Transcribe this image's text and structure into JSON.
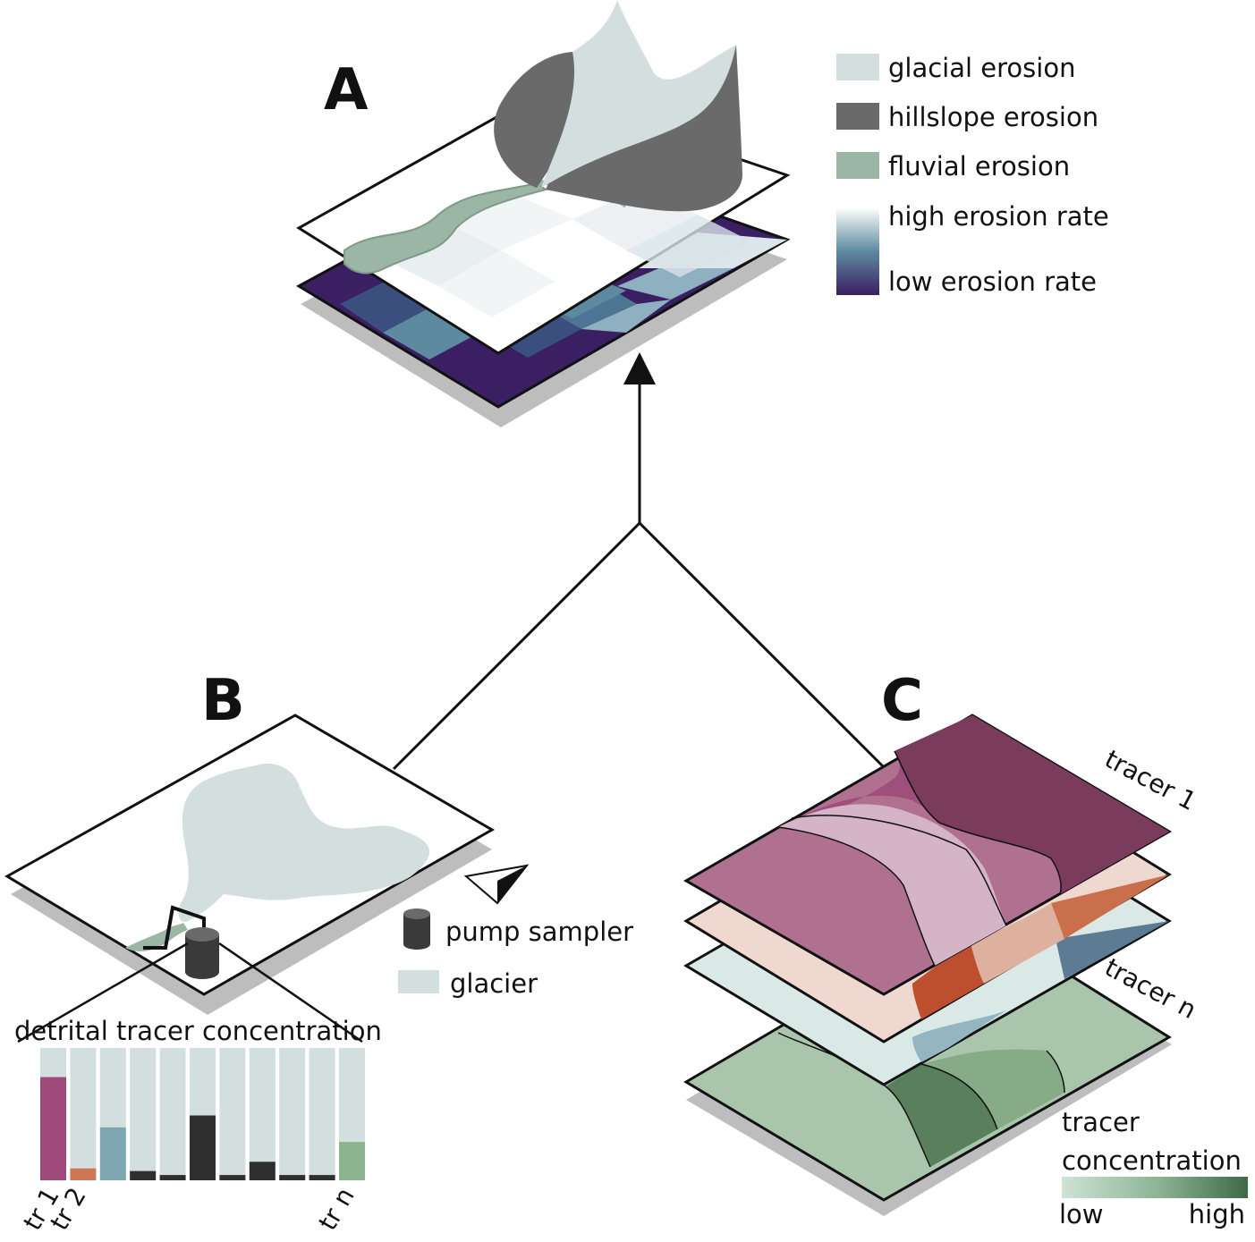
{
  "panels": {
    "a": {
      "letter": "A"
    },
    "b": {
      "letter": "B"
    },
    "c": {
      "letter": "C"
    }
  },
  "legend_a": {
    "glacial": {
      "label": "glacial erosion",
      "color": "#d3dfdf"
    },
    "hillslope": {
      "label": "hillslope erosion",
      "color": "#6a6a6a"
    },
    "fluvial": {
      "label": "fluvial erosion",
      "color": "#9bb6a4"
    },
    "rate_high": {
      "label": "high erosion rate",
      "color": "#ffffff"
    },
    "rate_low": {
      "label": "low erosion rate",
      "color": "#3b1f63"
    }
  },
  "legend_b": {
    "pump": {
      "label": "pump sampler",
      "color": "#3a3a3a"
    },
    "glacier": {
      "label": "glacier",
      "color": "#d3dfdf"
    }
  },
  "bar_panel": {
    "title": "detrital tracer concentration",
    "tick_labels": [
      "tr 1",
      "tr 2",
      "tr n"
    ],
    "fractions": [
      0.78,
      0.09,
      0.4,
      0.07,
      0.04,
      0.49,
      0.04,
      0.14,
      0.04,
      0.04,
      0.29
    ],
    "colors": [
      "#a04a7c",
      "#cf7655",
      "#7fa7b2",
      "#2f2f2f",
      "#2f2f2f",
      "#2f2f2f",
      "#2f2f2f",
      "#2f2f2f",
      "#2f2f2f",
      "#2f2f2f",
      "#8cb58f"
    ],
    "background": "#d3dfdf"
  },
  "layers_c": {
    "top_label": "tracer 1",
    "bottom_label": "tracer n"
  },
  "concentration_legend": {
    "title_line1": "tracer",
    "title_line2": "concentration",
    "low": "low",
    "high": "high",
    "color_low": "#cfe3d4",
    "color_high": "#3f6a4a"
  }
}
